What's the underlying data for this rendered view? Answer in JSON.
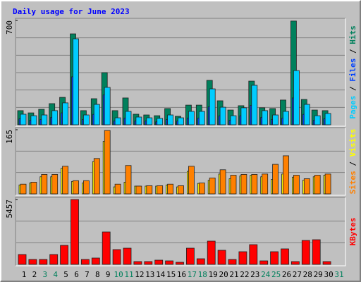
{
  "chart_data": [
    {
      "type": "bar",
      "title": "Daily usage for June 2023",
      "ylim": [
        0,
        700
      ],
      "yticks": [
        700
      ],
      "legend_separator": " / ",
      "series": [
        {
          "name": "Pages",
          "color": "#00ccff",
          "values": [
            71,
            61,
            66,
            95,
            147,
            577,
            66,
            137,
            251,
            47,
            90,
            52,
            47,
            43,
            66,
            47,
            90,
            90,
            241,
            118,
            61,
            114,
            265,
            95,
            66,
            90,
            364,
            137,
            61,
            76,
            null
          ]
        },
        {
          "name": "Files",
          "color": "#0040ff",
          "values": [
            40,
            30,
            35,
            50,
            80,
            322,
            35,
            70,
            200,
            25,
            45,
            25,
            25,
            20,
            35,
            25,
            45,
            45,
            120,
            60,
            30,
            60,
            130,
            50,
            35,
            45,
            180,
            70,
            30,
            40,
            null
          ]
        },
        {
          "name": "Hits",
          "color": "#00805c",
          "values": [
            95,
            80,
            104,
            142,
            184,
            610,
            95,
            175,
            350,
            95,
            180,
            71,
            66,
            61,
            109,
            57,
            132,
            132,
            298,
            161,
            99,
            128,
            293,
            114,
            109,
            166,
            696,
            170,
            99,
            95,
            null
          ]
        }
      ]
    },
    {
      "type": "bar",
      "ylim": [
        0,
        165
      ],
      "yticks": [
        165
      ],
      "legend_separator": " / ",
      "series": [
        {
          "name": "Sites",
          "color": "#ff8000",
          "values": [
            25,
            30,
            50,
            50,
            71,
            34,
            34,
            91,
            163,
            25,
            73,
            20,
            21,
            21,
            25,
            21,
            71,
            28,
            41,
            62,
            48,
            50,
            50,
            51,
            76,
            98,
            48,
            39,
            48,
            51,
            null
          ]
        },
        {
          "name": "Visits",
          "color": "#ffff00",
          "values": [
            23,
            28,
            44,
            44,
            66,
            32,
            28,
            83,
            135,
            18,
            30,
            20,
            20,
            20,
            23,
            18,
            58,
            27,
            35,
            51,
            39,
            46,
            48,
            44,
            37,
            51,
            43,
            35,
            44,
            48,
            null
          ]
        }
      ]
    },
    {
      "type": "bar",
      "ylim": [
        0,
        5457
      ],
      "yticks": [
        5457
      ],
      "legend_separator": " / ",
      "categories": [
        "1",
        "2",
        "3",
        "4",
        "5",
        "6",
        "7",
        "8",
        "9",
        "10",
        "11",
        "12",
        "13",
        "14",
        "15",
        "16",
        "17",
        "18",
        "19",
        "20",
        "21",
        "22",
        "23",
        "24",
        "25",
        "26",
        "27",
        "28",
        "29",
        "30",
        "31"
      ],
      "category_colors": [
        "#000000",
        "#000000",
        "#00805c",
        "#00805c",
        "#000000",
        "#000000",
        "#000000",
        "#000000",
        "#000000",
        "#00805c",
        "#00805c",
        "#000000",
        "#000000",
        "#000000",
        "#000000",
        "#000000",
        "#00805c",
        "#00805c",
        "#000000",
        "#000000",
        "#000000",
        "#000000",
        "#000000",
        "#00805c",
        "#00805c",
        "#000000",
        "#000000",
        "#000000",
        "#000000",
        "#000000",
        "#00805c"
      ],
      "series": [
        {
          "name": "KBytes",
          "color": "#ff0000",
          "values": [
            830,
            415,
            415,
            830,
            1600,
            5457,
            415,
            534,
            2728,
            1245,
            1364,
            237,
            237,
            356,
            296,
            178,
            1364,
            474,
            1957,
            1186,
            415,
            1067,
            1660,
            296,
            1067,
            1305,
            237,
            2016,
            2075,
            237,
            null
          ]
        }
      ]
    }
  ]
}
